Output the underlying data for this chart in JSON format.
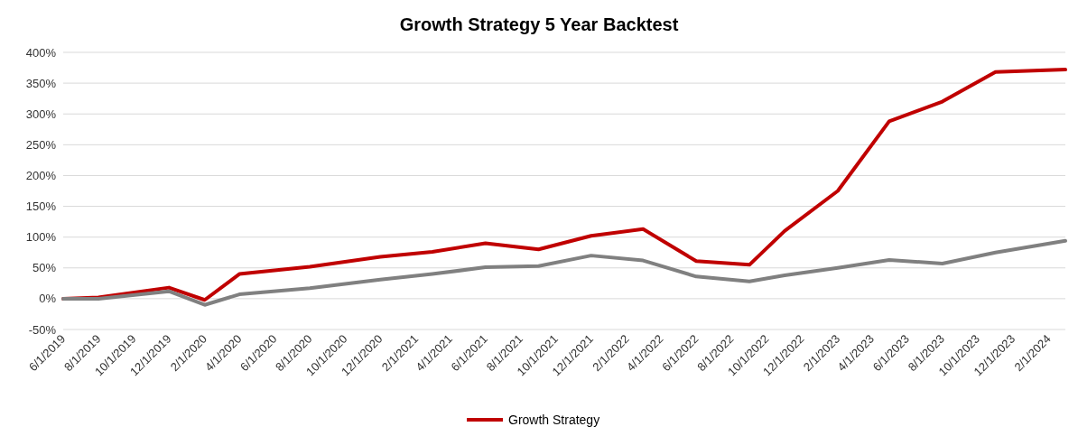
{
  "chart_data": {
    "type": "line",
    "title": "Growth Strategy 5 Year Backtest",
    "x": [
      "2019-06-01",
      "2019-08-01",
      "2019-12-01",
      "2020-02-01",
      "2020-04-01",
      "2020-08-01",
      "2020-12-01",
      "2021-03-01",
      "2021-06-01",
      "2021-09-01",
      "2021-12-01",
      "2022-03-01",
      "2022-06-01",
      "2022-09-01",
      "2022-11-01",
      "2023-02-01",
      "2023-05-01",
      "2023-08-01",
      "2023-11-01",
      "2024-03-01"
    ],
    "series": [
      {
        "name": "Growth Strategy",
        "color": "#c00000",
        "values": [
          0,
          2,
          18,
          -2,
          40,
          52,
          68,
          76,
          90,
          80,
          102,
          113,
          61,
          55,
          110,
          175,
          288,
          320,
          368,
          372
        ]
      },
      {
        "color": "#808080",
        "values": [
          0,
          0,
          12,
          -10,
          7,
          17,
          31,
          40,
          51,
          53,
          70,
          62,
          36,
          28,
          38,
          50,
          63,
          57,
          75,
          94
        ]
      }
    ],
    "xlim": [
      "2019-06-01",
      "2024-03-01"
    ],
    "xticks": [
      {
        "value": "2019-06-01",
        "label": "6/1/2019"
      },
      {
        "value": "2019-08-01",
        "label": "8/1/2019"
      },
      {
        "value": "2019-10-01",
        "label": "10/1/2019"
      },
      {
        "value": "2019-12-01",
        "label": "12/1/2019"
      },
      {
        "value": "2020-02-01",
        "label": "2/1/2020"
      },
      {
        "value": "2020-04-01",
        "label": "4/1/2020"
      },
      {
        "value": "2020-06-01",
        "label": "6/1/2020"
      },
      {
        "value": "2020-08-01",
        "label": "8/1/2020"
      },
      {
        "value": "2020-10-01",
        "label": "10/1/2020"
      },
      {
        "value": "2020-12-01",
        "label": "12/1/2020"
      },
      {
        "value": "2021-02-01",
        "label": "2/1/2021"
      },
      {
        "value": "2021-04-01",
        "label": "4/1/2021"
      },
      {
        "value": "2021-06-01",
        "label": "6/1/2021"
      },
      {
        "value": "2021-08-01",
        "label": "8/1/2021"
      },
      {
        "value": "2021-10-01",
        "label": "10/1/2021"
      },
      {
        "value": "2021-12-01",
        "label": "12/1/2021"
      },
      {
        "value": "2022-02-01",
        "label": "2/1/2022"
      },
      {
        "value": "2022-04-01",
        "label": "4/1/2022"
      },
      {
        "value": "2022-06-01",
        "label": "6/1/2022"
      },
      {
        "value": "2022-08-01",
        "label": "8/1/2022"
      },
      {
        "value": "2022-10-01",
        "label": "10/1/2022"
      },
      {
        "value": "2022-12-01",
        "label": "12/1/2022"
      },
      {
        "value": "2023-02-01",
        "label": "2/1/2023"
      },
      {
        "value": "2023-04-01",
        "label": "4/1/2023"
      },
      {
        "value": "2023-06-01",
        "label": "6/1/2023"
      },
      {
        "value": "2023-08-01",
        "label": "8/1/2023"
      },
      {
        "value": "2023-10-01",
        "label": "10/1/2023"
      },
      {
        "value": "2023-12-01",
        "label": "12/1/2023"
      },
      {
        "value": "2024-02-01",
        "label": "2/1/2024"
      }
    ],
    "ylim": [
      -50,
      400
    ],
    "yticks": [
      {
        "value": -50,
        "label": "-50%"
      },
      {
        "value": 0,
        "label": "0%"
      },
      {
        "value": 50,
        "label": "50%"
      },
      {
        "value": 100,
        "label": "100%"
      },
      {
        "value": 150,
        "label": "150%"
      },
      {
        "value": 200,
        "label": "200%"
      },
      {
        "value": 250,
        "label": "250%"
      },
      {
        "value": 300,
        "label": "300%"
      },
      {
        "value": 350,
        "label": "350%"
      },
      {
        "value": 400,
        "label": "400%"
      }
    ],
    "grid": "y",
    "legend": "bottom",
    "marker": "none",
    "line_style": "solid"
  }
}
